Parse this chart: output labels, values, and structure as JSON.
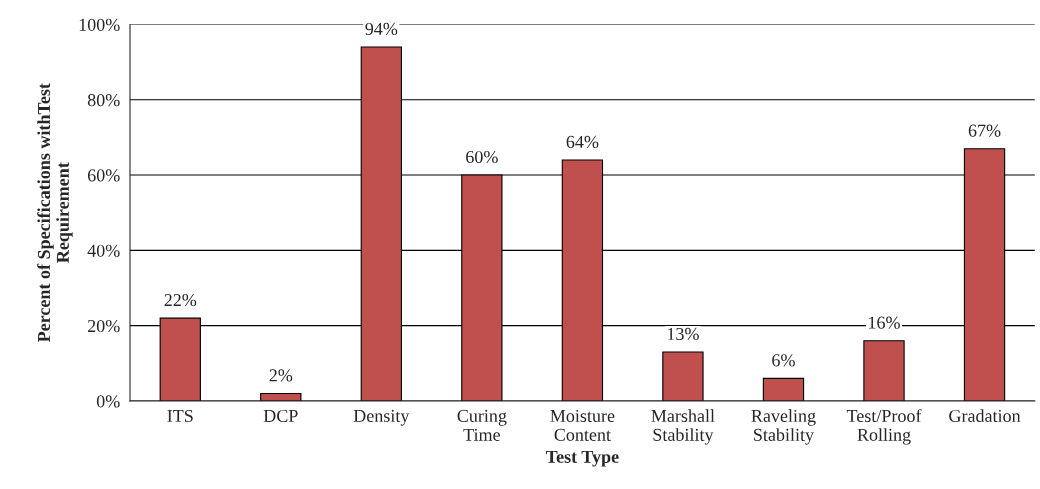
{
  "chart_data": {
    "type": "bar",
    "xlabel": "Test Type",
    "ylabel": "Percent of Specifications withTest\nRequirement",
    "categories": [
      "ITS",
      "DCP",
      "Density",
      "Curing\nTime",
      "Moisture\nContent",
      "Marshall\nStability",
      "Raveling\nStability",
      "Test/Proof\nRolling",
      "Gradation"
    ],
    "values": [
      22,
      2,
      94,
      60,
      64,
      13,
      6,
      16,
      67
    ],
    "value_labels": [
      "22%",
      "2%",
      "94%",
      "60%",
      "64%",
      "13%",
      "6%",
      "16%",
      "67%"
    ],
    "color": "#c0504d",
    "ylim": [
      0,
      100
    ],
    "yticks": [
      {
        "value": 0,
        "label": "0%"
      },
      {
        "value": 20,
        "label": "20%"
      },
      {
        "value": 40,
        "label": "40%"
      },
      {
        "value": 60,
        "label": "60%"
      },
      {
        "value": 80,
        "label": "80%"
      },
      {
        "value": 100,
        "label": "100%"
      }
    ],
    "grid": "y"
  }
}
